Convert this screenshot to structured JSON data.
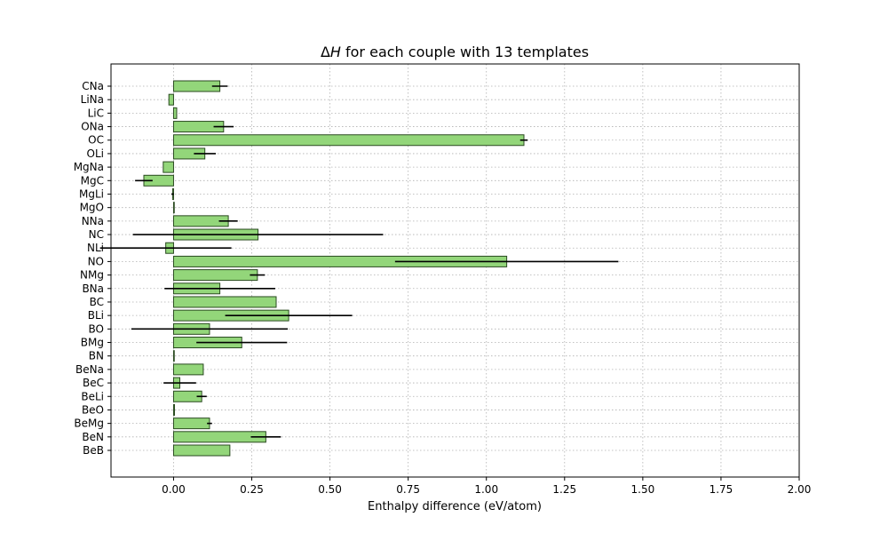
{
  "chart_data": {
    "type": "bar",
    "orientation": "horizontal",
    "title_prefix": "Δ",
    "title_var": "H",
    "title_suffix": " for each couple with 13 templates",
    "xlabel": "Enthalpy difference (eV/atom)",
    "ylabel": "",
    "xlim": [
      -0.2,
      2.0
    ],
    "xticks": [
      0.0,
      0.25,
      0.5,
      0.75,
      1.0,
      1.25,
      1.5,
      1.75,
      2.0
    ],
    "xtick_labels": [
      "0.00",
      "0.25",
      "0.50",
      "0.75",
      "1.00",
      "1.25",
      "1.50",
      "1.75",
      "2.00"
    ],
    "grid": true,
    "bar_color": "#93d67a",
    "edge_color": "#2a4a20",
    "error_color": "#000000",
    "categories": [
      "BeB",
      "BeN",
      "BeMg",
      "BeO",
      "BeLi",
      "BeC",
      "BeNa",
      "BN",
      "BMg",
      "BO",
      "BLi",
      "BC",
      "BNa",
      "NMg",
      "NO",
      "NLi",
      "NC",
      "NNa",
      "MgO",
      "MgLi",
      "MgC",
      "MgNa",
      "OLi",
      "OC",
      "ONa",
      "LiC",
      "LiNa",
      "CNa"
    ],
    "values": [
      0.18,
      0.295,
      0.115,
      0.003,
      0.09,
      0.02,
      0.095,
      0.0,
      0.218,
      0.115,
      0.368,
      0.328,
      0.148,
      0.268,
      1.065,
      -0.025,
      0.27,
      0.175,
      0.0,
      -0.003,
      -0.095,
      -0.033,
      0.1,
      1.12,
      0.16,
      0.01,
      -0.015,
      0.148
    ],
    "errors": [
      0.0,
      0.048,
      0.008,
      0.0,
      0.016,
      0.052,
      0.0,
      0.0,
      0.145,
      0.25,
      0.203,
      0.0,
      0.177,
      0.024,
      0.357,
      0.21,
      0.4,
      0.03,
      0.0,
      0.004,
      0.028,
      0.0,
      0.035,
      0.012,
      0.032,
      0.0,
      0.0,
      0.025
    ]
  }
}
